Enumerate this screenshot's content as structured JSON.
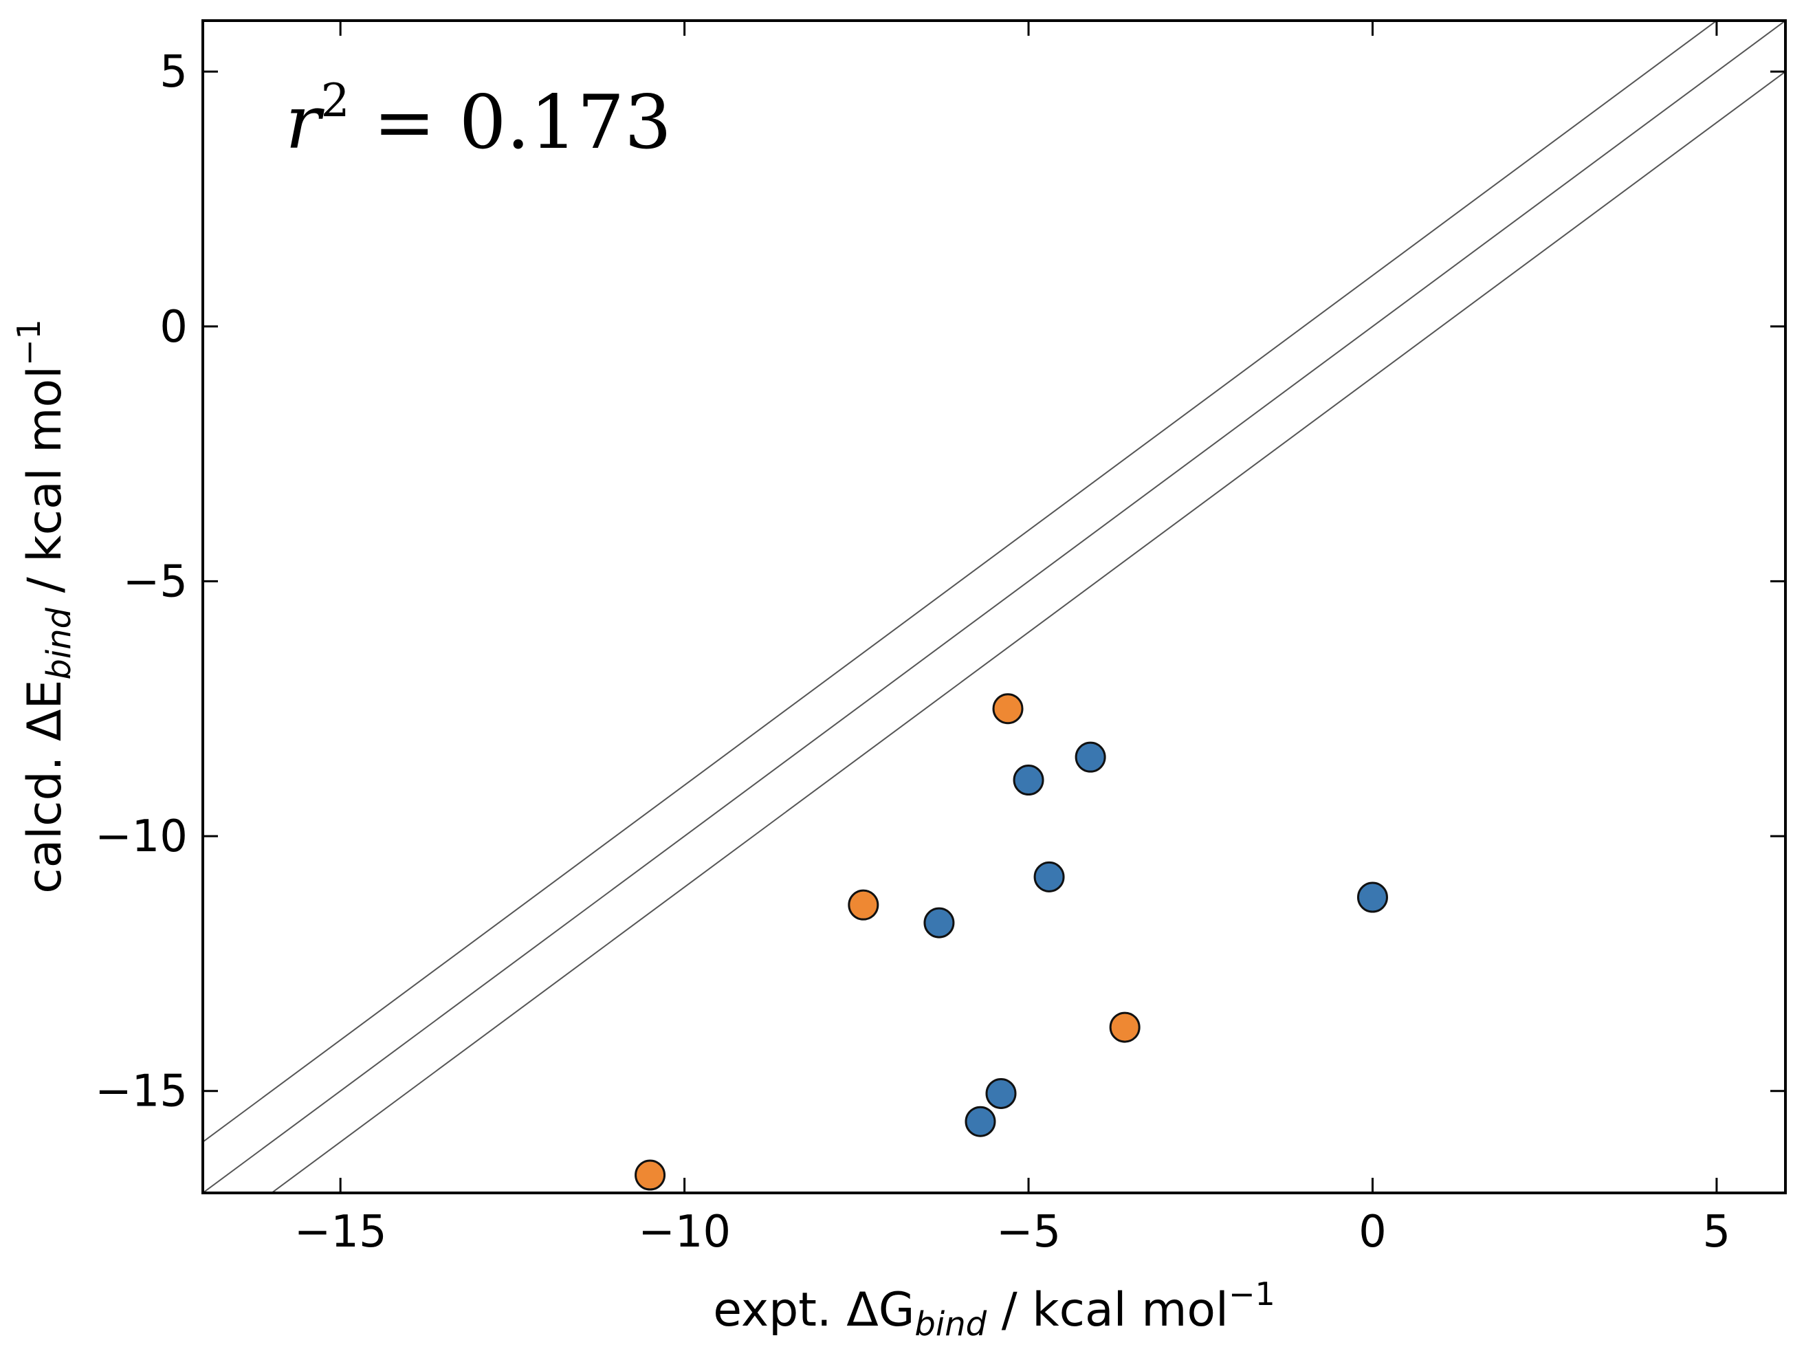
{
  "chart_data": {
    "type": "scatter",
    "xlabel": {
      "prefix": "expt. ΔG",
      "sub": "bind",
      "suffix": " / kcal mol",
      "sup": "−1"
    },
    "ylabel": {
      "prefix": "calcd. ΔE",
      "sub": "bind",
      "suffix": " / kcal mol",
      "sup": "−1"
    },
    "annotation": {
      "var": "r",
      "sup": "2",
      "rest": " = 0.173"
    },
    "xlim": [
      -17,
      6
    ],
    "ylim": [
      -17,
      6
    ],
    "x_ticks": [
      -15,
      -10,
      -5,
      0,
      5
    ],
    "y_ticks": [
      5,
      0,
      -5,
      -10,
      -15
    ],
    "x_tick_labels": [
      "−15",
      "−10",
      "−5",
      "0",
      "5"
    ],
    "y_tick_labels": [
      "5",
      "0",
      "−5",
      "−10",
      "−15"
    ],
    "grid": false,
    "reference_lines": [
      {
        "intercept": 1
      },
      {
        "intercept": 0
      },
      {
        "intercept": -1
      }
    ],
    "series": [
      {
        "color": "#3a77b0",
        "points": [
          {
            "x": -4.1,
            "y": -8.45
          },
          {
            "x": -5.0,
            "y": -8.9
          },
          {
            "x": -4.7,
            "y": -10.8
          },
          {
            "x": -6.3,
            "y": -11.7
          },
          {
            "x": 0.0,
            "y": -11.2
          },
          {
            "x": -5.4,
            "y": -15.05
          },
          {
            "x": -5.7,
            "y": -15.6
          }
        ]
      },
      {
        "color": "#ee8833",
        "points": [
          {
            "x": -5.3,
            "y": -7.5
          },
          {
            "x": -7.4,
            "y": -11.35
          },
          {
            "x": -3.6,
            "y": -13.75
          },
          {
            "x": -10.5,
            "y": -16.65
          }
        ]
      }
    ]
  }
}
